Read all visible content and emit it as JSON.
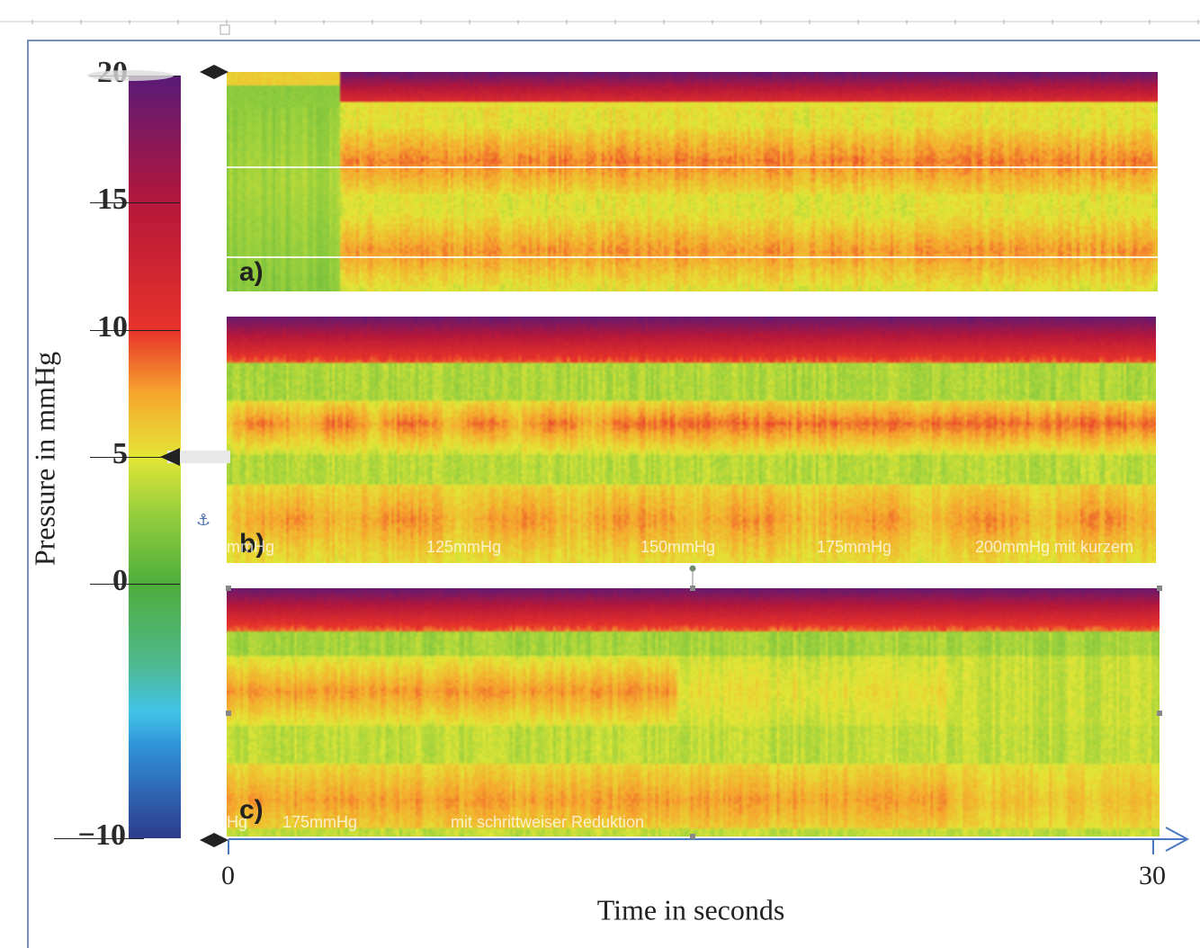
{
  "chart_data": {
    "type": "heatmap",
    "ylabel": "Pressure in mmHg",
    "xlabel": "Time in seconds",
    "colorbar": {
      "range": [
        -10,
        20
      ],
      "tick_values": [
        20,
        15,
        10,
        5,
        0,
        -10
      ],
      "tick_labels": [
        "20",
        "15",
        "10",
        "5",
        "0",
        "−10"
      ],
      "colors": [
        {
          "value": -10,
          "color": "#2e3a8c"
        },
        {
          "value": -6.5,
          "color": "#2f8fd6"
        },
        {
          "value": -5,
          "color": "#41c3e8"
        },
        {
          "value": -3,
          "color": "#4fb88a"
        },
        {
          "value": 0,
          "color": "#4dae3c"
        },
        {
          "value": 3,
          "color": "#9cd13d"
        },
        {
          "value": 5,
          "color": "#e4e636"
        },
        {
          "value": 7.5,
          "color": "#f6a72e"
        },
        {
          "value": 10,
          "color": "#e8332a"
        },
        {
          "value": 15,
          "color": "#b5173a"
        },
        {
          "value": 20,
          "color": "#5a1a78"
        }
      ]
    },
    "x_ticks": [
      "0",
      "30"
    ],
    "xlim": [
      0,
      30
    ],
    "panels": [
      {
        "label": "a)",
        "segment_labels": []
      },
      {
        "label": "b)",
        "segment_labels": [
          "mmHg",
          "125mmHg",
          "150mmHg",
          "175mmHg",
          "200mmHg mit kurzem"
        ]
      },
      {
        "label": "c)",
        "segment_labels": [
          "Hg",
          "175mmHg",
          "mit schrittweiser Reduktion"
        ]
      }
    ]
  }
}
